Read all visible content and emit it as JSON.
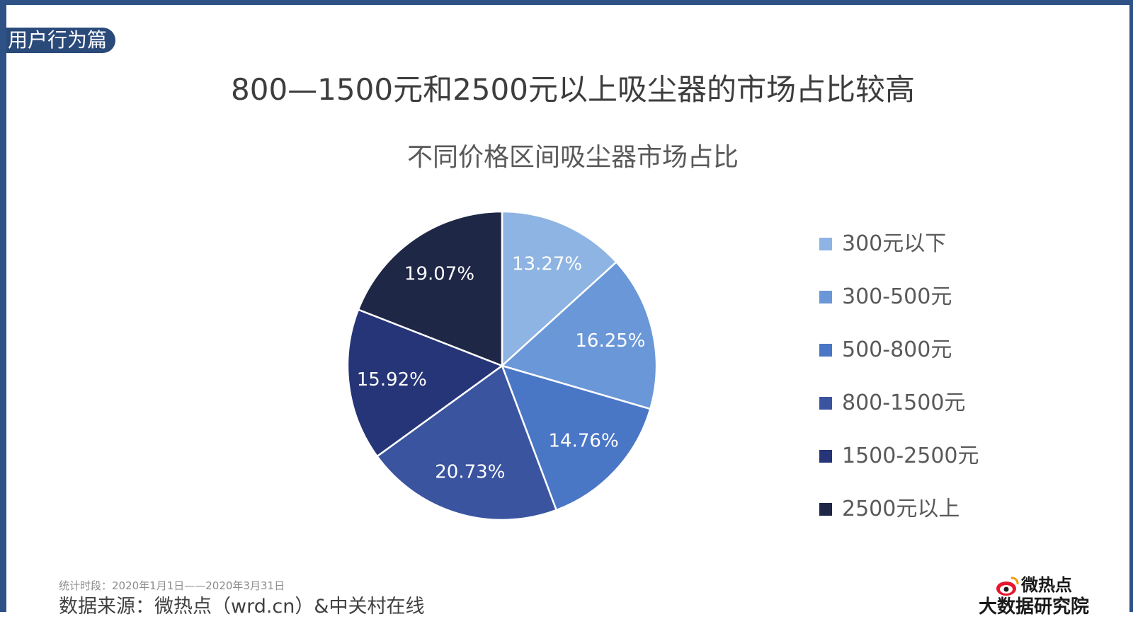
{
  "section_tag": "用户行为篇",
  "main_title": "800—1500元和2500元以上吸尘器的市场占比较高",
  "footer": {
    "period": "统计时段：2020年1月1日——2020年3月31日",
    "source": "数据来源：微热点（wrd.cn）&中关村在线"
  },
  "logo": {
    "brand": "微热点",
    "subtitle": "大数据研究院",
    "icon": "weibo-eye-icon"
  },
  "chart_data": {
    "type": "pie",
    "title": "不同价格区间吸尘器市场占比",
    "legend_position": "right",
    "start_angle": "top",
    "direction": "clockwise",
    "unit": "%",
    "categories": [
      "300元以下",
      "300-500元",
      "500-800元",
      "800-1500元",
      "1500-2500元",
      "2500元以上"
    ],
    "values": [
      13.27,
      16.25,
      14.76,
      20.73,
      15.92,
      19.07
    ],
    "labels": [
      "13.27%",
      "16.25%",
      "14.76%",
      "20.73%",
      "15.92%",
      "19.07%"
    ],
    "colors": [
      "#8db4e2",
      "#6a97d8",
      "#4a76c6",
      "#3a54a0",
      "#263577",
      "#1f2746"
    ]
  }
}
